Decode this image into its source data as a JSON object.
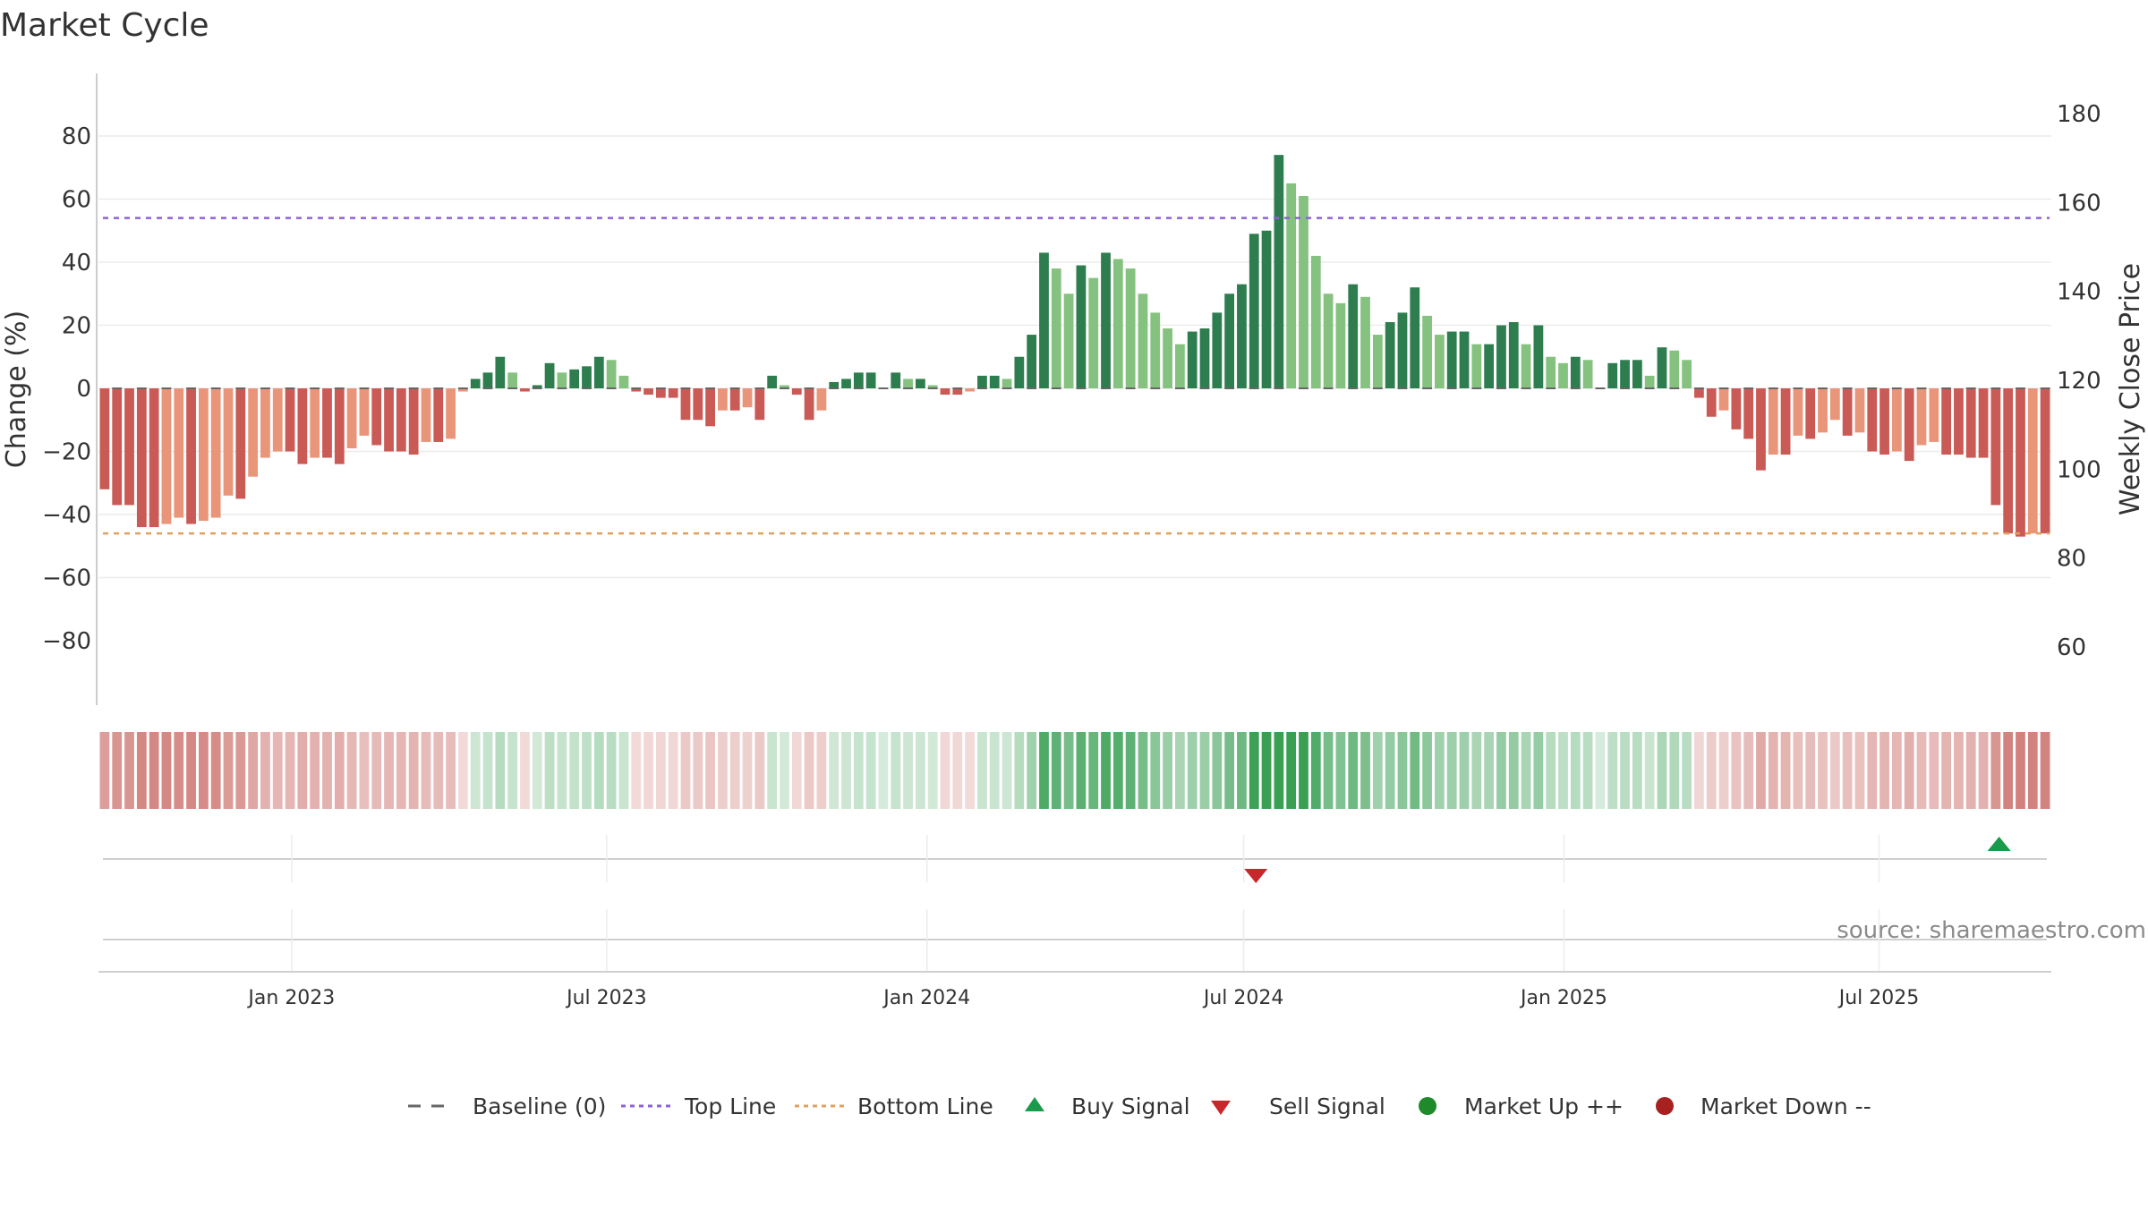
{
  "chart_data": {
    "type": "bar",
    "title": "Market Cycle",
    "ylabel": "Change (%)",
    "y2label": "Weekly Close Price",
    "ylim": [
      -80,
      80
    ],
    "yticks": [
      80,
      60,
      40,
      20,
      0,
      -20,
      -40,
      -60,
      -80
    ],
    "y2ticks": [
      180,
      160,
      140,
      120,
      100,
      80,
      60
    ],
    "xlim": [
      "2022-09-12",
      "2025-10-08"
    ],
    "x_ticks": [
      {
        "date": "2023-01-01",
        "label": "Jan 2023"
      },
      {
        "date": "2023-07-01",
        "label": "Jul 2023"
      },
      {
        "date": "2024-01-01",
        "label": "Jan 2024"
      },
      {
        "date": "2024-07-01",
        "label": "Jul 2024"
      },
      {
        "date": "2025-01-01",
        "label": "Jan 2025"
      },
      {
        "date": "2025-07-01",
        "label": "Jul 2025"
      }
    ],
    "start_week": "2022-09-12",
    "week_interval_days": 7,
    "values": [
      -32,
      -37,
      -37,
      -44,
      -44,
      -43,
      -41,
      -43,
      -42,
      -41,
      -34,
      -35,
      -28,
      -22,
      -20,
      -20,
      -24,
      -22,
      -22,
      -24,
      -19,
      -15,
      -18,
      -20,
      -20,
      -21,
      -17,
      -17,
      -16,
      -1,
      3,
      5,
      10,
      5,
      -1,
      1,
      8,
      5,
      6,
      7,
      10,
      9,
      4,
      -1,
      -2,
      -3,
      -3,
      -10,
      -10,
      -12,
      -7,
      -7,
      -6,
      -10,
      4,
      1,
      -2,
      -10,
      -7,
      2,
      3,
      5,
      5,
      0,
      5,
      3,
      3,
      1,
      -2,
      -2,
      -1,
      4,
      4,
      3,
      10,
      17,
      43,
      38,
      30,
      39,
      35,
      43,
      41,
      38,
      30,
      24,
      19,
      14,
      18,
      19,
      24,
      30,
      33,
      49,
      50,
      74,
      65,
      61,
      42,
      30,
      27,
      33,
      29,
      17,
      21,
      24,
      32,
      23,
      17,
      18,
      18,
      14,
      14,
      20,
      21,
      14,
      20,
      10,
      8,
      10,
      9,
      0,
      8,
      9,
      9,
      4,
      13,
      12,
      9,
      -3,
      -9,
      -7,
      -13,
      -16,
      -26,
      -21,
      -21,
      -15,
      -16,
      -14,
      -10,
      -15,
      -14,
      -20,
      -21,
      -20,
      -23,
      -18,
      -17,
      -21,
      -21,
      -22,
      -22,
      -37,
      -46,
      -47,
      -46,
      -46
    ],
    "top_line": 54,
    "bottom_line": -46,
    "signals": [
      {
        "type": "sell",
        "date": "2024-07-08"
      },
      {
        "type": "buy",
        "date": "2025-09-08"
      }
    ],
    "legend": [
      "Baseline (0)",
      "Top Line",
      "Bottom Line",
      "Buy Signal",
      "Sell Signal",
      "Market Up ++",
      "Market Down --"
    ],
    "legend_position": "bottom",
    "source": "source: sharemaestro.com",
    "colors": {
      "strong_up": "#2e7d4f",
      "up": "#85c27f",
      "strong_down": "#c95a55",
      "down": "#e8957a",
      "top_line": "#8e61d6",
      "bottom_line": "#e0a060",
      "baseline": "#666666",
      "buy": "#1a9a4a",
      "sell": "#c8282c",
      "market_up": "#1e8a2a",
      "market_down": "#a82020"
    }
  }
}
